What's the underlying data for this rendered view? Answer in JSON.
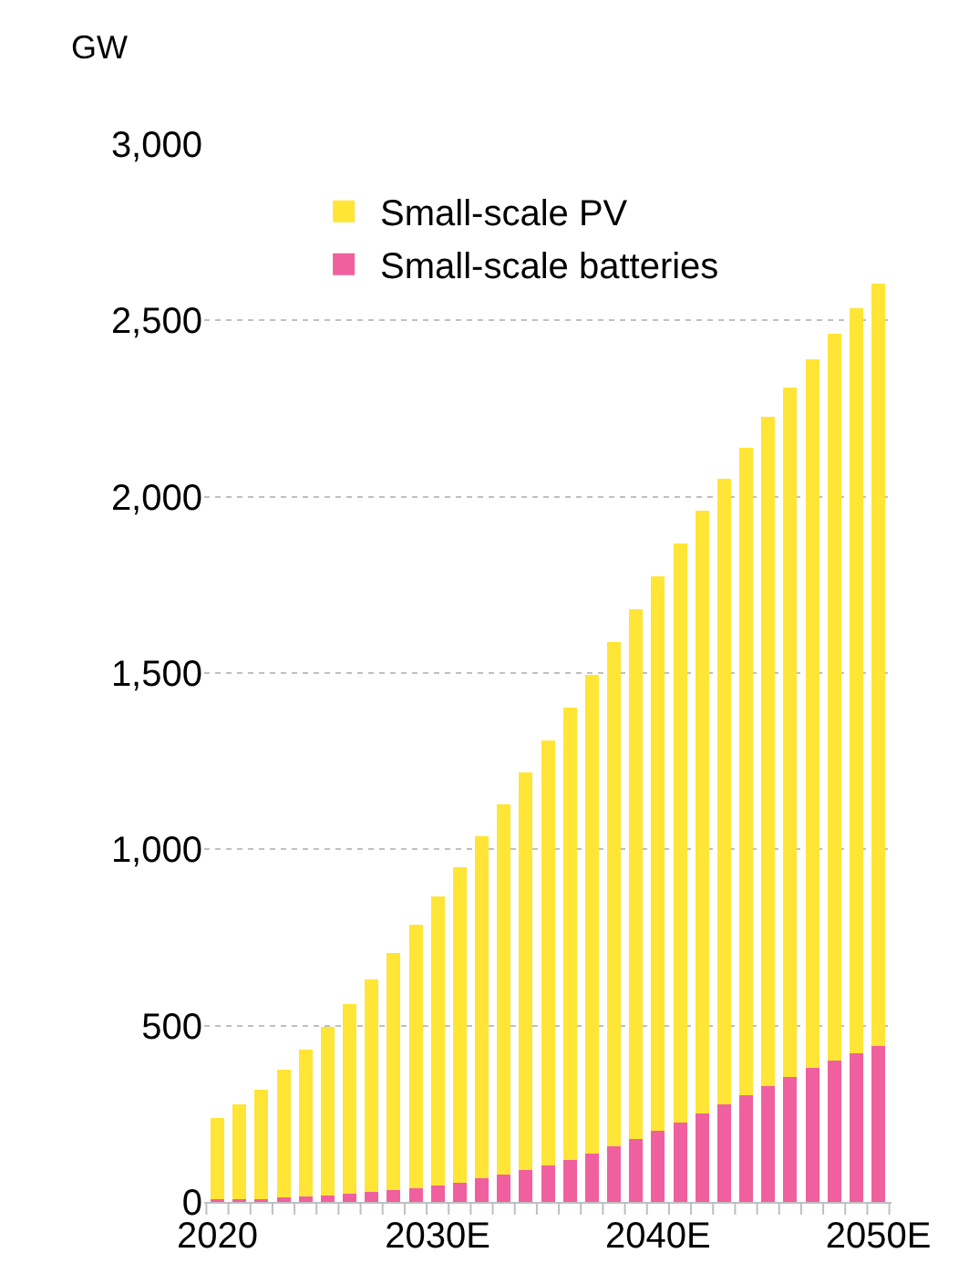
{
  "chart_data": {
    "type": "bar",
    "stacked": true,
    "ylabel": "GW",
    "categories": [
      "2020",
      null,
      null,
      null,
      null,
      null,
      null,
      null,
      null,
      null,
      "2030E",
      null,
      null,
      null,
      null,
      null,
      null,
      null,
      null,
      null,
      "2040E",
      null,
      null,
      null,
      null,
      null,
      null,
      null,
      null,
      null,
      "2050E"
    ],
    "series": [
      {
        "name": "Small-scale batteries",
        "color": "#f0609e",
        "values": [
          7,
          7,
          8,
          12,
          15,
          19,
          24,
          28,
          33,
          40,
          47,
          55,
          66,
          78,
          90,
          104,
          120,
          138,
          159,
          179,
          202,
          226,
          250,
          276,
          303,
          329,
          355,
          379,
          402,
          422,
          443
        ]
      },
      {
        "name": "Small-scale PV",
        "color": "#ffe536",
        "values": [
          232,
          271,
          311,
          362,
          416,
          477,
          536,
          604,
          674,
          746,
          820,
          895,
          972,
          1049,
          1127,
          1204,
          1281,
          1356,
          1428,
          1501,
          1573,
          1642,
          1711,
          1776,
          1837,
          1898,
          1954,
          2010,
          2060,
          2113,
          2162
        ]
      }
    ],
    "ylim": [
      0,
      3000
    ],
    "yticks": [
      {
        "value": 0,
        "label": "0"
      },
      {
        "value": 500,
        "label": "500"
      },
      {
        "value": 1000,
        "label": "1,000"
      },
      {
        "value": 1500,
        "label": "1,500"
      },
      {
        "value": 2000,
        "label": "2,000"
      },
      {
        "value": 2500,
        "label": "2,500"
      },
      {
        "value": 3000,
        "label": "3,000"
      }
    ],
    "grid": "y",
    "legend": "top left"
  }
}
